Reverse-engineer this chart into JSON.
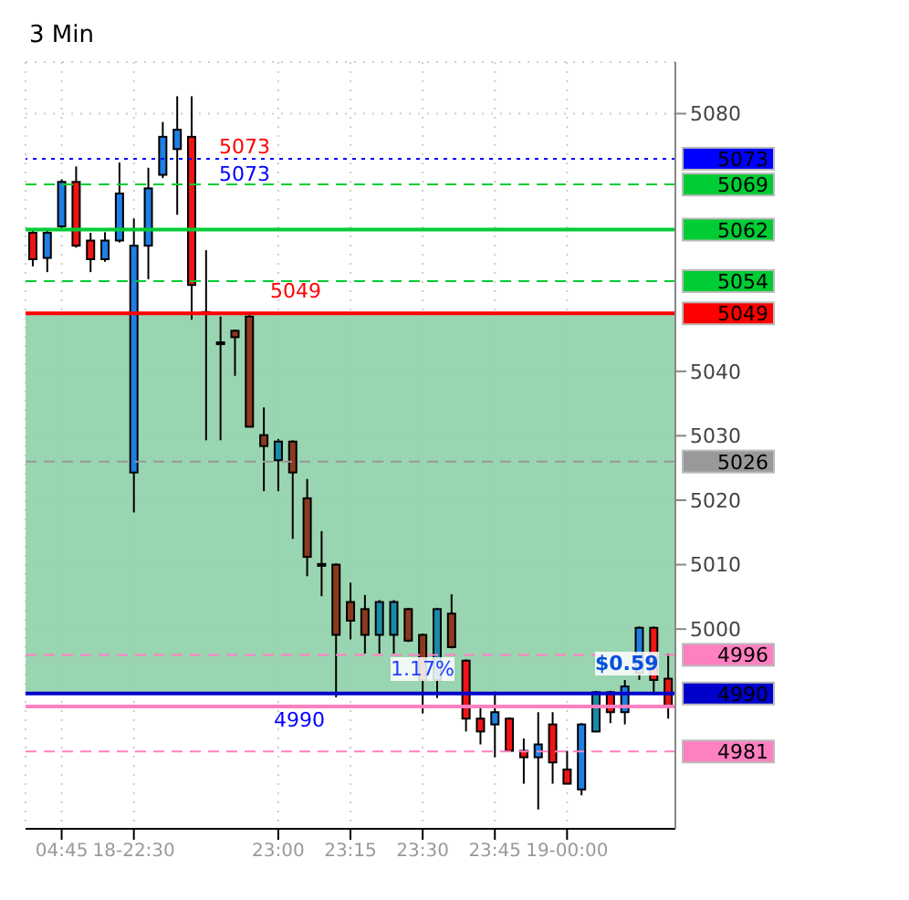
{
  "chart_data": {
    "type": "candlestick",
    "title": "3 Min",
    "categories": [
      null,
      null,
      "04:45",
      null,
      null,
      null,
      null,
      "18-22:30",
      null,
      null,
      null,
      null,
      null,
      null,
      null,
      null,
      null,
      "23:00",
      null,
      null,
      null,
      null,
      "23:15",
      null,
      null,
      null,
      null,
      "23:30",
      null,
      null,
      null,
      null,
      "23:45",
      null,
      null,
      null,
      null,
      "19-00:00",
      null,
      null,
      null,
      null,
      null,
      null,
      null
    ],
    "ohlc": [
      [
        5061.5,
        5062.2,
        5056.3,
        5057.4
      ],
      [
        5057.6,
        5062,
        5055.4,
        5061.5
      ],
      [
        5062.5,
        5069.8,
        5062.2,
        5069.4
      ],
      [
        5069.4,
        5071.8,
        5059.2,
        5059.5
      ],
      [
        5060.3,
        5061.5,
        5055.4,
        5057.4
      ],
      [
        5057.4,
        5061.6,
        5057,
        5060.3
      ],
      [
        5060.3,
        5072.4,
        5060,
        5067.6
      ],
      [
        5024.3,
        5063.7,
        5018.1,
        5059.5
      ],
      [
        5059.5,
        5071.6,
        5054.3,
        5068.4
      ],
      [
        5070.5,
        5078.7,
        5070,
        5076.4
      ],
      [
        5074.5,
        5082.7,
        5064.3,
        5077.5
      ],
      [
        5076.4,
        5082.7,
        5048,
        5053.4
      ],
      [
        5049.2,
        5058.8,
        5029.3,
        5049
      ],
      [
        5044.5,
        5048.5,
        5029.3,
        5044.3
      ],
      [
        5046.3,
        5046.5,
        5039.3,
        5045.3
      ],
      [
        5048.5,
        5049,
        5031.4,
        5031.4
      ],
      [
        5030.1,
        5034.4,
        5021.4,
        5028.4
      ],
      [
        5026.2,
        5029.5,
        5021.4,
        5029.1
      ],
      [
        5029.1,
        5029.3,
        5014,
        5024.3
      ],
      [
        5020.3,
        5023.3,
        5008.2,
        5011.2
      ],
      [
        5010.1,
        5015.2,
        5005.1,
        5010
      ],
      [
        5010,
        5010.2,
        4989.4,
        4999.1
      ],
      [
        5004.2,
        5007.2,
        4998.4,
        5001.3
      ],
      [
        5003.1,
        5005.3,
        4996.2,
        4999.1
      ],
      [
        4999.1,
        5004.5,
        4996.2,
        5004.2
      ],
      [
        4999.1,
        5004.5,
        4996.2,
        5004.2
      ],
      [
        5003.1,
        5003.3,
        4998,
        4998.2
      ],
      [
        4999.1,
        4999.3,
        4986.9,
        4992.1
      ],
      [
        4992.1,
        5003.3,
        4989.3,
        5003.1
      ],
      [
        5002.4,
        5005.4,
        4997,
        4997.2
      ],
      [
        4995.1,
        4995.3,
        4984.1,
        4986.1
      ],
      [
        4986.1,
        4988.1,
        4982.1,
        4984.1
      ],
      [
        4985.2,
        4990.3,
        4980.1,
        4987.1
      ],
      [
        4986.1,
        4986.3,
        4981,
        4981.1
      ],
      [
        4981.1,
        4983,
        4976,
        4980.1
      ],
      [
        4980.1,
        4987.1,
        4972,
        4982.1
      ],
      [
        4985.2,
        4987.1,
        4976,
        4979.3
      ],
      [
        4978.2,
        4981.1,
        4976,
        4976
      ],
      [
        4975.1,
        4985.4,
        4974.2,
        4985.2
      ],
      [
        4984.1,
        4990.4,
        4984,
        4990.2
      ],
      [
        4990.2,
        4990.4,
        4985.4,
        4987.1
      ],
      [
        4987.1,
        4992.1,
        4985.2,
        4991.1
      ],
      [
        4993.2,
        5000.4,
        4992.1,
        5000.2
      ],
      [
        5000.2,
        5000.4,
        4990.2,
        4992.1
      ],
      [
        4992.3,
        4996.2,
        4986.1,
        4988.1
      ]
    ],
    "colors": [
      "#f01414",
      "#1e7fe6",
      "#1e7fe6",
      "#f01414",
      "#f01414",
      "#1e7fe6",
      "#1e7fe6",
      "#1e7fe6",
      "#1e7fe6",
      "#1e7fe6",
      "#1e7fe6",
      "#f01414",
      "#1a8aa8",
      "#1a8aa8",
      "#8b3a1e",
      "#8b3a1e",
      "#8b3a1e",
      "#1a8aa8",
      "#8b3a1e",
      "#8b3a1e",
      "#1a8aa8",
      "#8b3a1e",
      "#8b3a1e",
      "#8b3a1e",
      "#1a8aa8",
      "#1a8aa8",
      "#8b3a1e",
      "#8b3a1e",
      "#1a8aa8",
      "#8b3a1e",
      "#f01414",
      "#f01414",
      "#1e7fe6",
      "#f01414",
      "#f01414",
      "#1e7fe6",
      "#f01414",
      "#f01414",
      "#1e7fe6",
      "#1a8aa8",
      "#f01414",
      "#1e7fe6",
      "#1e7fe6",
      "#f01414",
      "#f01414"
    ],
    "ylim": [
      4969,
      5088
    ],
    "yticks": [
      5000,
      5010,
      5020,
      5030,
      5040,
      5080
    ],
    "grid": true,
    "ref_lines": [
      {
        "axis": "y",
        "value": 5073,
        "label": "5073",
        "color": "#0000ff",
        "line_style": "dotted"
      },
      {
        "axis": "y",
        "value": 5069,
        "label": "5069",
        "color": "#00cc33",
        "line_style": "dashed"
      },
      {
        "axis": "y",
        "value": 5062,
        "label": "5062",
        "color": "#00cc33",
        "line_style": "solid"
      },
      {
        "axis": "y",
        "value": 5054,
        "label": "5054",
        "color": "#00cc33",
        "line_style": "dashed"
      },
      {
        "axis": "y",
        "value": 5049,
        "label": "5049",
        "color": "#ff0000",
        "line_style": "solid"
      },
      {
        "axis": "y",
        "value": 5026,
        "label": "5026",
        "color": "#999999",
        "line_style": "dashed"
      },
      {
        "axis": "y",
        "value": 4996,
        "label": "4996",
        "color": "#ff80c0",
        "line_style": "dashed"
      },
      {
        "axis": "y",
        "value": 4990,
        "label": "4990",
        "color": "#0000cc",
        "line_style": "solid"
      },
      {
        "axis": "y",
        "value": 4988,
        "label": null,
        "color": "#ff80c0",
        "line_style": "solid"
      },
      {
        "axis": "y",
        "value": 4981,
        "label": "4981",
        "color": "#ff80c0",
        "line_style": "dashed"
      }
    ],
    "bands": [
      {
        "axis": "y",
        "from": 4990,
        "to": 5049,
        "label": null,
        "color": "#8fd0a8"
      }
    ],
    "annotations": [
      "5073",
      "5073",
      "5049",
      "4990",
      "$0.59",
      "1.17%"
    ]
  }
}
